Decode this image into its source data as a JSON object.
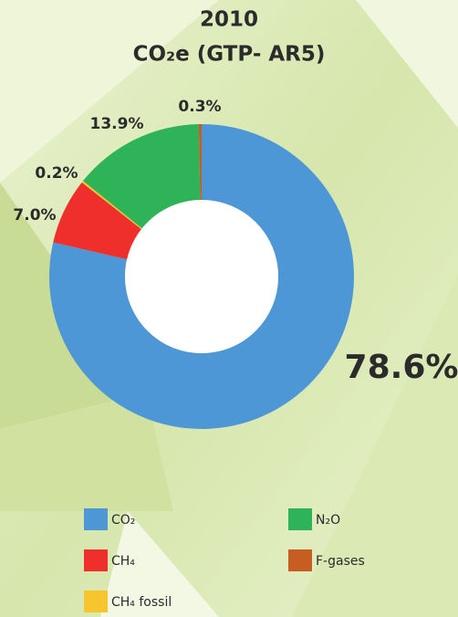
{
  "chart_data": {
    "type": "donut",
    "title": "2010",
    "subtitle": "CO₂e (GTP- AR5)",
    "categories": [
      "CO₂",
      "CH₄",
      "CH₄ fossil",
      "N₂O",
      "F-gases"
    ],
    "values": [
      78.6,
      7.0,
      0.2,
      13.9,
      0.3
    ],
    "value_labels": [
      "78.6%",
      "7.0%",
      "0.2%",
      "13.9%",
      "0.3%"
    ],
    "colors": [
      "#4e97d7",
      "#ee2f2c",
      "#f7c52d",
      "#2fb359",
      "#c75d22"
    ]
  }
}
